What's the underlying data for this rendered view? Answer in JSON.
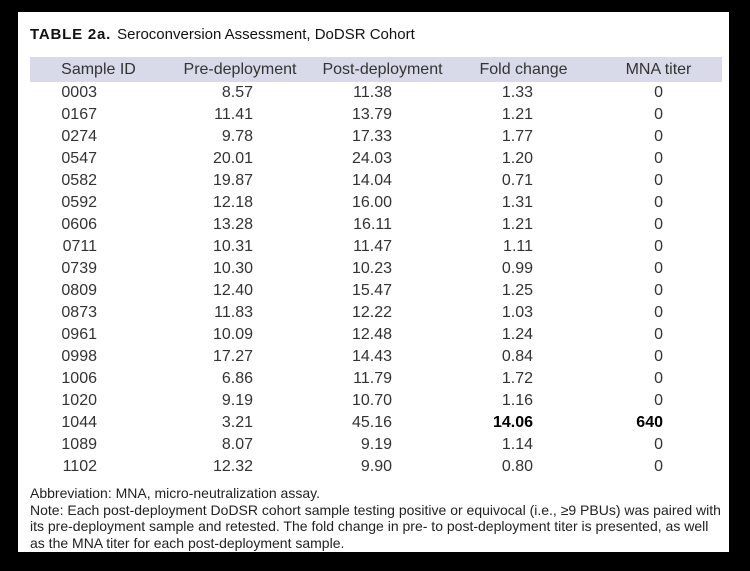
{
  "table": {
    "title_label": "TABLE 2a.",
    "title_text": "Seroconversion Assessment, DoDSR Cohort",
    "columns": [
      "Sample ID",
      "Pre-deployment",
      "Post-deployment",
      "Fold change",
      "MNA titer"
    ],
    "rows": [
      {
        "sample_id": "0003",
        "pre_deployment": "8.57",
        "post_deployment": "11.38",
        "fold_change": "1.33",
        "mna_titer": "0",
        "bold": false
      },
      {
        "sample_id": "0167",
        "pre_deployment": "11.41",
        "post_deployment": "13.79",
        "fold_change": "1.21",
        "mna_titer": "0",
        "bold": false
      },
      {
        "sample_id": "0274",
        "pre_deployment": "9.78",
        "post_deployment": "17.33",
        "fold_change": "1.77",
        "mna_titer": "0",
        "bold": false
      },
      {
        "sample_id": "0547",
        "pre_deployment": "20.01",
        "post_deployment": "24.03",
        "fold_change": "1.20",
        "mna_titer": "0",
        "bold": false
      },
      {
        "sample_id": "0582",
        "pre_deployment": "19.87",
        "post_deployment": "14.04",
        "fold_change": "0.71",
        "mna_titer": "0",
        "bold": false
      },
      {
        "sample_id": "0592",
        "pre_deployment": "12.18",
        "post_deployment": "16.00",
        "fold_change": "1.31",
        "mna_titer": "0",
        "bold": false
      },
      {
        "sample_id": "0606",
        "pre_deployment": "13.28",
        "post_deployment": "16.11",
        "fold_change": "1.21",
        "mna_titer": "0",
        "bold": false
      },
      {
        "sample_id": "0711",
        "pre_deployment": "10.31",
        "post_deployment": "11.47",
        "fold_change": "1.11",
        "mna_titer": "0",
        "bold": false
      },
      {
        "sample_id": "0739",
        "pre_deployment": "10.30",
        "post_deployment": "10.23",
        "fold_change": "0.99",
        "mna_titer": "0",
        "bold": false
      },
      {
        "sample_id": "0809",
        "pre_deployment": "12.40",
        "post_deployment": "15.47",
        "fold_change": "1.25",
        "mna_titer": "0",
        "bold": false
      },
      {
        "sample_id": "0873",
        "pre_deployment": "11.83",
        "post_deployment": "12.22",
        "fold_change": "1.03",
        "mna_titer": "0",
        "bold": false
      },
      {
        "sample_id": "0961",
        "pre_deployment": "10.09",
        "post_deployment": "12.48",
        "fold_change": "1.24",
        "mna_titer": "0",
        "bold": false
      },
      {
        "sample_id": "0998",
        "pre_deployment": "17.27",
        "post_deployment": "14.43",
        "fold_change": "0.84",
        "mna_titer": "0",
        "bold": false
      },
      {
        "sample_id": "1006",
        "pre_deployment": "6.86",
        "post_deployment": "11.79",
        "fold_change": "1.72",
        "mna_titer": "0",
        "bold": false
      },
      {
        "sample_id": "1020",
        "pre_deployment": "9.19",
        "post_deployment": "10.70",
        "fold_change": "1.16",
        "mna_titer": "0",
        "bold": false
      },
      {
        "sample_id": "1044",
        "pre_deployment": "3.21",
        "post_deployment": "45.16",
        "fold_change": "14.06",
        "mna_titer": "640",
        "bold": true
      },
      {
        "sample_id": "1089",
        "pre_deployment": "8.07",
        "post_deployment": "9.19",
        "fold_change": "1.14",
        "mna_titer": "0",
        "bold": false
      },
      {
        "sample_id": "1102",
        "pre_deployment": "12.32",
        "post_deployment": "9.90",
        "fold_change": "0.80",
        "mna_titer": "0",
        "bold": false
      }
    ]
  },
  "footer": {
    "abbreviation": "Abbreviation: MNA, micro-neutralization assay.",
    "note": "Note: Each post-deployment DoDSR cohort sample testing positive or equivocal (i.e., ≥9 PBUs) was paired with its pre-deployment sample and retested. The fold change in pre- to post-deployment titer is presented, as well as the MNA titer for each post-deployment sample."
  },
  "colors": {
    "frame": "#000000",
    "page_bg": "#ffffff",
    "header_bg": "#d9dae9",
    "text": "#333333",
    "bold_text": "#000000"
  }
}
